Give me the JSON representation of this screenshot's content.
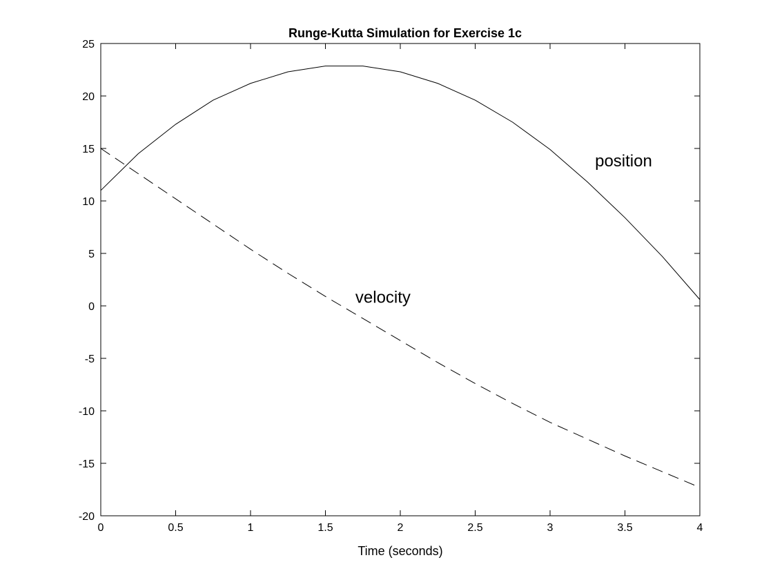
{
  "chart_data": {
    "type": "line",
    "title": "Runge-Kutta Simulation for Exercise 1c",
    "xlabel": "Time (seconds)",
    "ylabel": "",
    "xlim": [
      0,
      4
    ],
    "ylim": [
      -20,
      25
    ],
    "grid": false,
    "x_ticks": [
      "0",
      "0.5",
      "1",
      "1.5",
      "2",
      "2.5",
      "3",
      "3.5",
      "4"
    ],
    "y_ticks": [
      "25",
      "20",
      "15",
      "10",
      "5",
      "0",
      "-5",
      "-10",
      "-15",
      "-20"
    ],
    "x": [
      0,
      0.25,
      0.5,
      0.75,
      1.0,
      1.25,
      1.5,
      1.75,
      2.0,
      2.25,
      2.5,
      2.75,
      3.0,
      3.25,
      3.5,
      3.75,
      4.0
    ],
    "series": [
      {
        "line_style": "solid",
        "color": "#000000",
        "values": [
          11.0,
          14.5,
          17.3,
          19.6,
          21.2,
          22.3,
          22.85,
          22.85,
          22.3,
          21.2,
          19.6,
          17.5,
          14.9,
          11.8,
          8.4,
          4.7,
          0.6
        ]
      },
      {
        "line_style": "dashed",
        "color": "#000000",
        "values": [
          15.0,
          12.6,
          10.2,
          7.8,
          5.4,
          3.1,
          0.9,
          -1.2,
          -3.3,
          -5.4,
          -7.4,
          -9.3,
          -11.1,
          -12.7,
          -14.3,
          -15.8,
          -17.3
        ]
      }
    ],
    "annotations": [
      {
        "text": "position",
        "x": 3.3,
        "y": 13.3
      },
      {
        "text": "velocity",
        "x": 1.7,
        "y": 0.3
      }
    ]
  }
}
